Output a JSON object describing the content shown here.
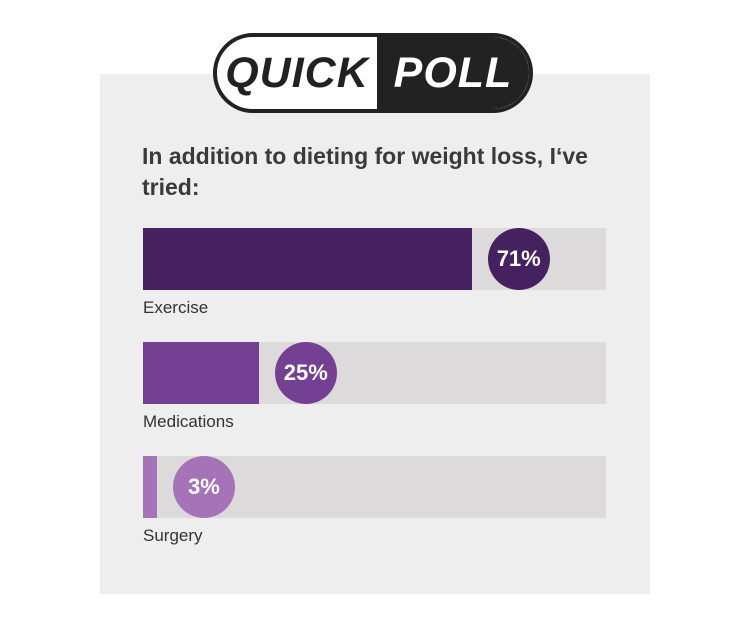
{
  "badge": {
    "left_word": "QUICK",
    "right_word": "POLL"
  },
  "colors": {
    "panel_bg": "#efeeee",
    "track": "#dcdadb",
    "series": [
      "#46215f",
      "#744094",
      "#a672b8"
    ]
  },
  "chart_data": {
    "type": "bar",
    "orientation": "horizontal",
    "title": "In addition to dieting for weight loss, I‘ve tried:",
    "categories": [
      "Exercise",
      "Medications",
      "Surgery"
    ],
    "values": [
      71,
      25,
      3
    ],
    "value_labels": [
      "71%",
      "25%",
      "3%"
    ],
    "unit": "%",
    "xlim": [
      0,
      100
    ],
    "grid": false,
    "legend": "none"
  }
}
